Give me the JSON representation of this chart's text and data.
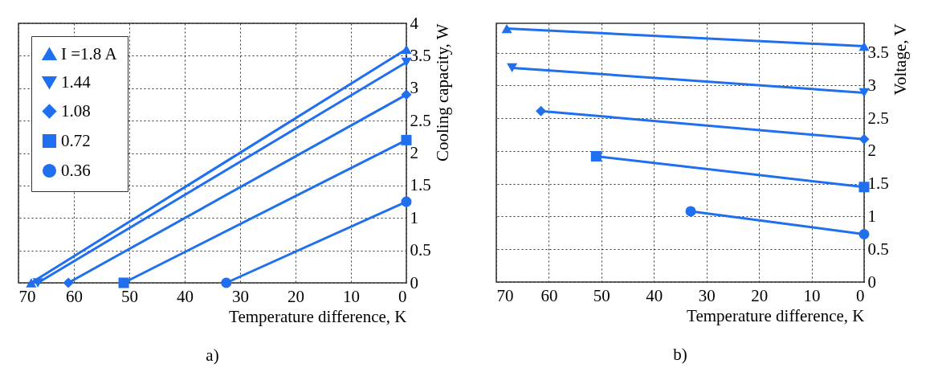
{
  "chart_data": [
    {
      "type": "line",
      "xlabel": "Temperature difference, K",
      "ylabel": "Cooling capacity, W",
      "annotations": [
        "a)"
      ],
      "xlim": [
        70,
        0
      ],
      "xticks": [
        70,
        60,
        50,
        40,
        30,
        20,
        10,
        0
      ],
      "ylim": [
        0,
        4
      ],
      "yticks": [
        0,
        0.5,
        1,
        1.5,
        2,
        2.5,
        3,
        3.5,
        4
      ],
      "grid": true,
      "legend": "top left",
      "series": [
        {
          "name": "I =1.8 A",
          "color": "#1f6fef",
          "marker": "triangle",
          "x": [
            67.7,
            0
          ],
          "values": [
            0,
            3.6
          ]
        },
        {
          "name": "1.44",
          "color": "#1f6fef",
          "marker": "triangle-down",
          "x": [
            66.5,
            0
          ],
          "values": [
            0,
            3.4
          ]
        },
        {
          "name": "1.08",
          "color": "#1f6fef",
          "marker": "diamond",
          "x": [
            61,
            0
          ],
          "values": [
            0,
            2.9
          ]
        },
        {
          "name": "0.72",
          "color": "#1f6fef",
          "marker": "square",
          "x": [
            51,
            0
          ],
          "values": [
            0,
            2.2
          ]
        },
        {
          "name": "0.36",
          "color": "#1f6fef",
          "marker": "circle",
          "x": [
            32.5,
            0
          ],
          "values": [
            0,
            1.25
          ]
        }
      ]
    },
    {
      "type": "line",
      "xlabel": "Temperature difference, K",
      "ylabel": "Voltage, V",
      "annotations": [
        "b)"
      ],
      "xlim": [
        70,
        0
      ],
      "xticks": [
        70,
        60,
        50,
        40,
        30,
        20,
        10,
        0
      ],
      "ylim": [
        0,
        3.95
      ],
      "yticks": [
        0,
        0.5,
        1,
        1.5,
        2,
        2.5,
        3,
        3.5
      ],
      "grid": true,
      "series": [
        {
          "color": "#1f6fef",
          "marker": "triangle",
          "x": [
            68,
            0
          ],
          "values": [
            3.87,
            3.6
          ]
        },
        {
          "color": "#1f6fef",
          "marker": "triangle-down",
          "x": [
            67,
            0
          ],
          "values": [
            3.27,
            2.89
          ]
        },
        {
          "color": "#1f6fef",
          "marker": "diamond",
          "x": [
            61.5,
            0
          ],
          "values": [
            2.61,
            2.18
          ]
        },
        {
          "color": "#1f6fef",
          "marker": "square",
          "x": [
            51,
            0
          ],
          "values": [
            1.92,
            1.45
          ]
        },
        {
          "color": "#1f6fef",
          "marker": "circle",
          "x": [
            33,
            0
          ],
          "values": [
            1.08,
            0.73
          ]
        }
      ]
    }
  ]
}
